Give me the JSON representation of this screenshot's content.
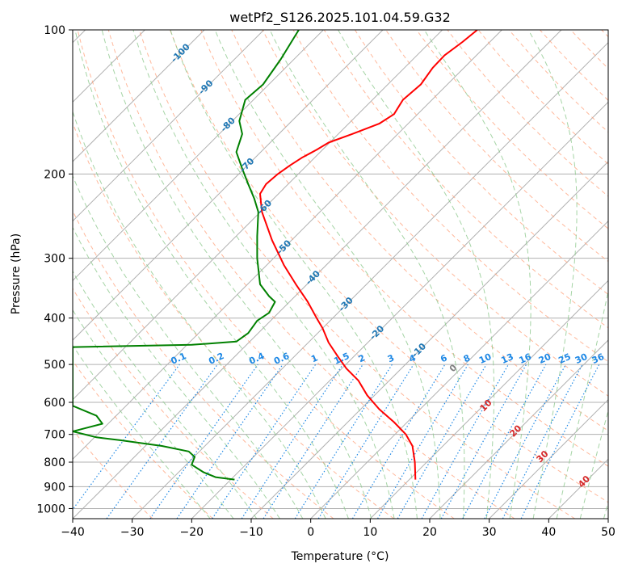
{
  "chart_data": {
    "type": "line",
    "title": "wetPf2_S126.2025.101.04.59.G32",
    "xlabel": "Temperature (°C)",
    "ylabel": "Pressure (hPa)",
    "xlim": [
      -40,
      50
    ],
    "ylim": [
      1050,
      100
    ],
    "y_scale": "log",
    "grid": true,
    "x_ticks": [
      -40,
      -30,
      -20,
      -10,
      0,
      10,
      20,
      30,
      40,
      50
    ],
    "y_ticks": [
      100,
      200,
      300,
      400,
      500,
      600,
      700,
      800,
      900,
      1000
    ],
    "series": [
      {
        "color": "#ff0000",
        "x": [
          17.6,
          17.5,
          17.1,
          16.0,
          14.0,
          11.5,
          9.5,
          8.0,
          6.0,
          4.5,
          3.0,
          2.0,
          1.0,
          -0.5,
          -2.5,
          -4.5,
          -6.5,
          -8.2,
          -8.5,
          -7.5,
          -5.5,
          -3.5,
          -1.5,
          1.0,
          3.0,
          7.0,
          11.5,
          14.0,
          15.5,
          18.5,
          20.5,
          22.5,
          25.5,
          28.0
        ],
        "y": [
          870,
          800,
          740,
          700,
          660,
          620,
          580,
          540,
          510,
          480,
          450,
          420,
          400,
          370,
          340,
          310,
          275,
          240,
          220,
          210,
          200,
          192,
          185,
          178,
          172,
          165,
          157,
          150,
          140,
          130,
          120,
          113,
          106,
          100
        ]
      },
      {
        "color": "#008000",
        "x": [
          -12.8,
          -16.0,
          -18.0,
          -20.0,
          -19.5,
          -20.5,
          -25.0,
          -32.0,
          -36.0,
          -40.0,
          -38.0,
          -35.0,
          -36.0,
          -40.0,
          -40.0,
          -20.0,
          -12.5,
          -10.5,
          -9.0,
          -7.0,
          -6.0,
          -7.0,
          -8.5,
          -9.0,
          -9.0,
          -8.8,
          -9.5,
          -10.5,
          -11.5,
          -12.5,
          -11.5,
          -12.0,
          -11.0,
          -8.0,
          -5.0,
          -2.0
        ],
        "y": [
          870,
          860,
          840,
          810,
          780,
          760,
          740,
          720,
          710,
          690,
          680,
          665,
          640,
          610,
          460,
          455,
          448,
          430,
          405,
          390,
          370,
          360,
          340,
          300,
          270,
          240,
          225,
          210,
          195,
          180,
          165,
          155,
          140,
          130,
          115,
          100
        ]
      }
    ],
    "isotherm_labels": [
      "-100",
      "-90",
      "-80",
      "-70",
      "-60",
      "-50",
      "-40",
      "-30",
      "-20",
      "-10"
    ],
    "mixing_ratio_labels": [
      "0.1",
      "0.2",
      "0.4",
      "0.6",
      "1",
      "1.5",
      "2",
      "3",
      "4",
      "6",
      "8",
      "10",
      "13",
      "16",
      "20",
      "25",
      "30",
      "36"
    ],
    "moist_adiabat_labels": [
      "0",
      "10",
      "20",
      "30",
      "40"
    ],
    "colors": {
      "temperature": "#ff0000",
      "dewpoint": "#008000",
      "grid": "#b0b0b0",
      "isotherm_label": "#1f77b4",
      "mixing_ratio": "#1e88e5",
      "dry_adiabat": "#ffa07a",
      "moist_adiabat": "#8fc98f",
      "moist_label": "#d62728"
    }
  }
}
